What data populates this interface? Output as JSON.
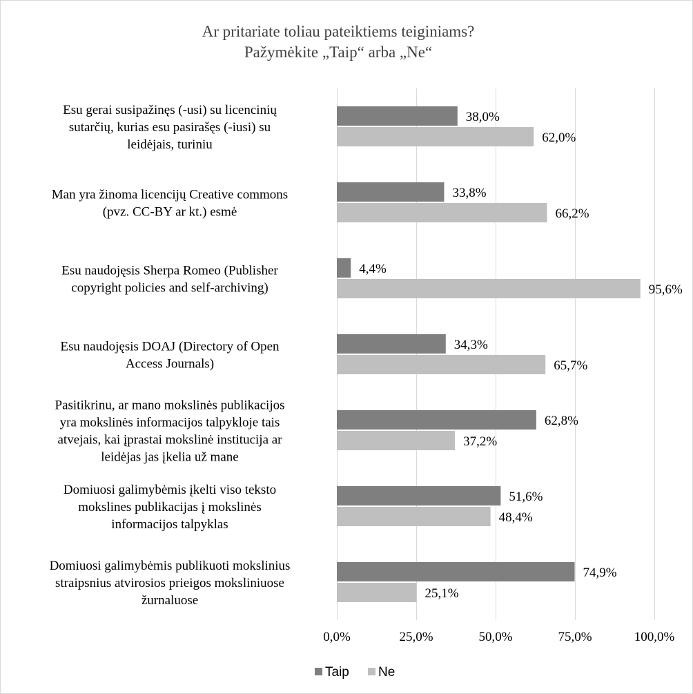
{
  "chart_data": {
    "type": "bar",
    "orientation": "horizontal",
    "title": [
      "Ar pritariate toliau pateiktiems teiginiams?",
      "Pažymėkite „Taip“ arba „Ne“"
    ],
    "categories": [
      [
        "Esu gerai susipažinęs (-usi) su licencinių",
        "sutarčių, kurias esu pasirašęs (-iusi) su",
        "leidėjais, turiniu"
      ],
      [
        "Man yra žinoma licencijų Creative commons",
        "(pvz. CC-BY ar kt.) esmė"
      ],
      [
        "Esu naudojęsis Sherpa Romeo (Publisher",
        "copyright policies and self-archiving)"
      ],
      [
        "Esu naudojęsis DOAJ (Directory of Open",
        "Access Journals)"
      ],
      [
        "Pasitikrinu, ar mano mokslinės publikacijos",
        "yra mokslinės informacijos talpykloje tais",
        "atvejais, kai įprastai mokslinė institucija ar",
        "leidėjas jas įkelia už mane"
      ],
      [
        "Domiuosi galimybėmis įkelti viso teksto",
        "mokslines publikacijas į mokslinės",
        "informacijos talpyklas"
      ],
      [
        "Domiuosi galimybėmis publikuoti mokslinius",
        "straipsnius atvirosios prieigos moksliniuose",
        "žurnaluose"
      ]
    ],
    "series": [
      {
        "name": "Taip",
        "color": "#7f7f7f",
        "values": [
          38.0,
          33.8,
          4.4,
          34.3,
          62.8,
          51.6,
          74.9
        ],
        "labels": [
          "38,0%",
          "33,8%",
          "4,4%",
          "34,3%",
          "62,8%",
          "51,6%",
          "74,9%"
        ]
      },
      {
        "name": "Ne",
        "color": "#bfbfbf",
        "values": [
          62.0,
          66.2,
          95.6,
          65.7,
          37.2,
          48.4,
          25.1
        ],
        "labels": [
          "62,0%",
          "66,2%",
          "95,6%",
          "65,7%",
          "37,2%",
          "48,4%",
          "25,1%"
        ]
      }
    ],
    "xlim": [
      0,
      100
    ],
    "xticks": [
      0,
      25,
      50,
      75,
      100
    ],
    "xtick_labels": [
      "0,0%",
      "25,0%",
      "50,0%",
      "75,0%",
      "100,0%"
    ],
    "grid": true,
    "legend": "bottom",
    "gridline_color": "#d9d9d9"
  }
}
